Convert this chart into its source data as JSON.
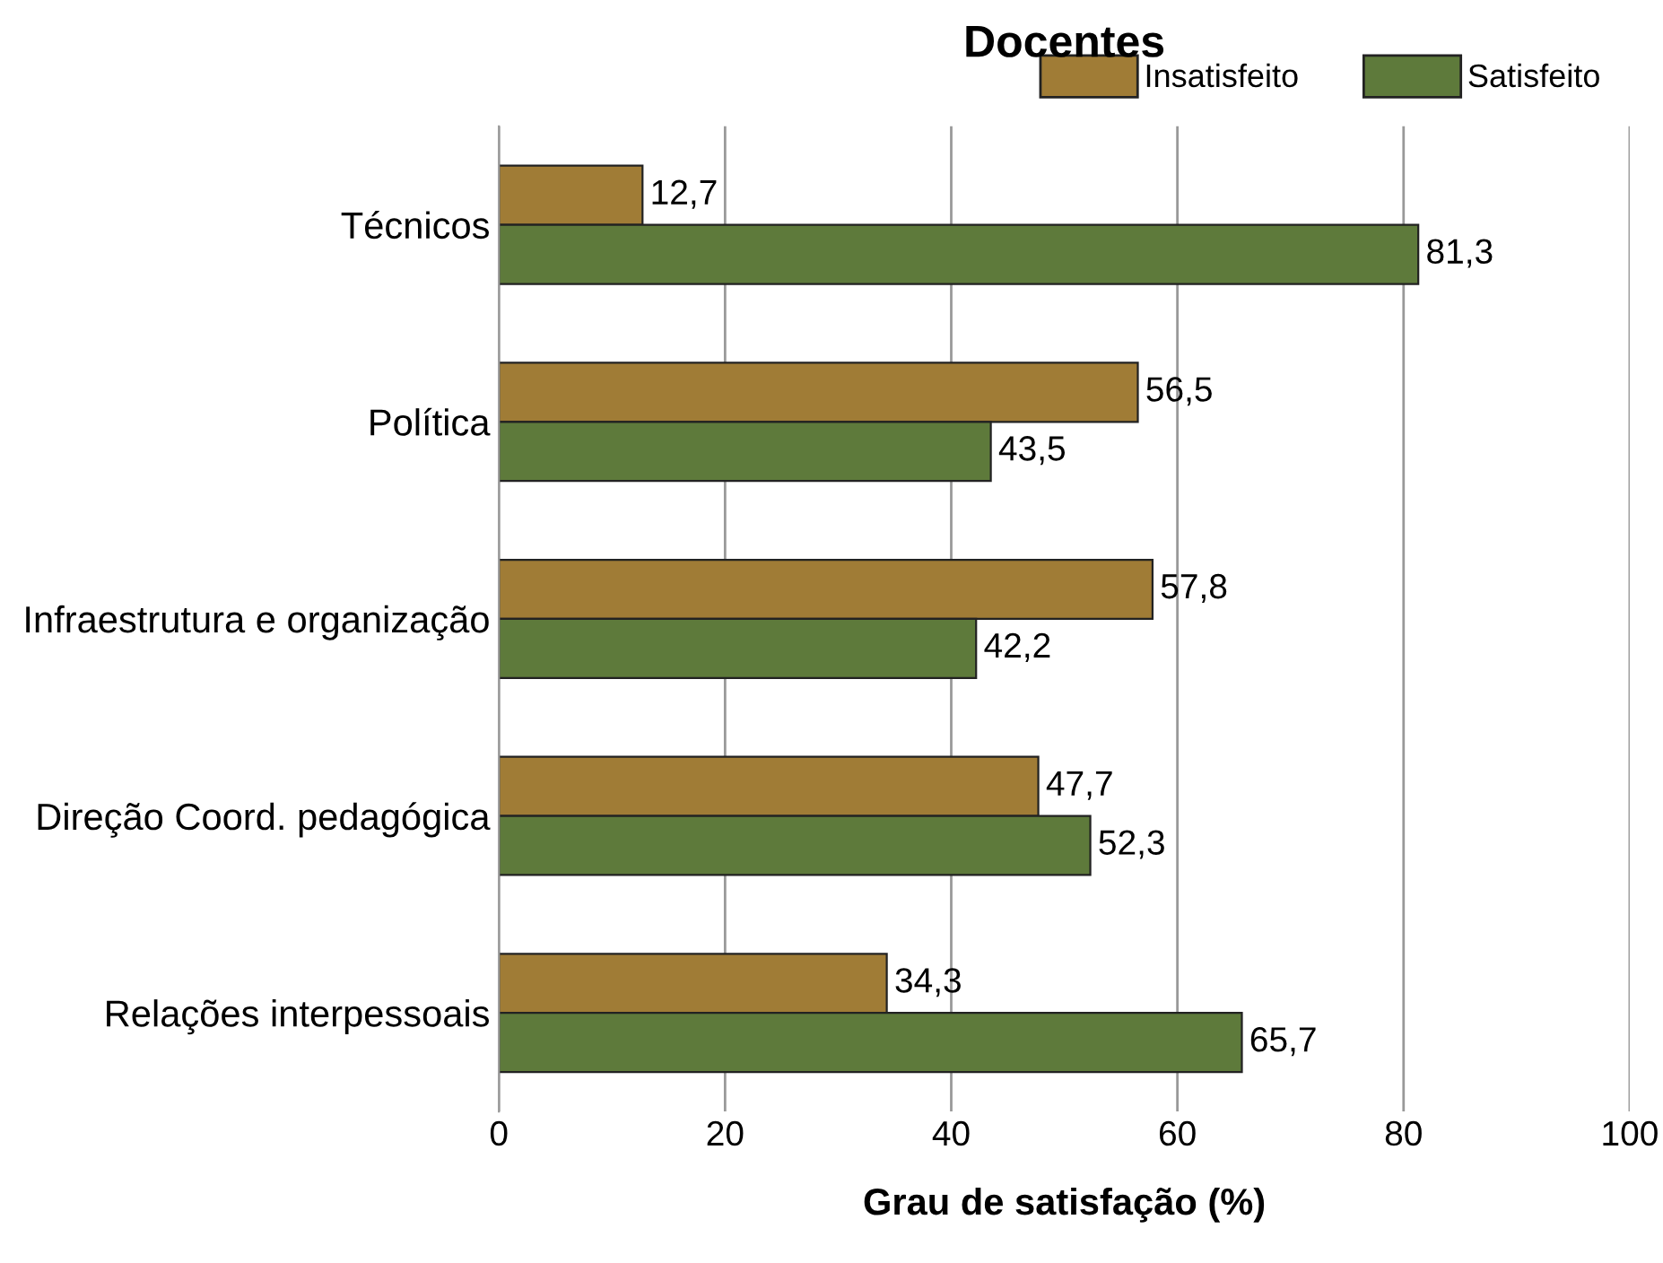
{
  "chart_data": {
    "type": "bar",
    "orientation": "horizontal",
    "title": "Docentes",
    "xlabel": "Grau de satisfação (%)",
    "categories": [
      "Técnicos",
      "Política",
      "Infraestrutura e organização",
      "Direção Coord. pedagógica",
      "Relações interpessoais"
    ],
    "series": [
      {
        "name": "Insatisfeito",
        "color": "#a07c36",
        "values": [
          12.7,
          56.5,
          57.8,
          47.7,
          34.3
        ],
        "value_labels": [
          "12,7",
          "56,5",
          "57,8",
          "47,7",
          "34,3"
        ]
      },
      {
        "name": "Satisfeito",
        "color": "#5e7a3b",
        "values": [
          81.3,
          43.5,
          42.2,
          52.3,
          65.7
        ],
        "value_labels": [
          "81,3",
          "43,5",
          "42,2",
          "52,3",
          "65,7"
        ]
      }
    ],
    "xlim": [
      0,
      100
    ],
    "xticks": [
      0,
      20,
      40,
      60,
      80,
      100
    ],
    "grid": "x",
    "legend": "top right"
  }
}
